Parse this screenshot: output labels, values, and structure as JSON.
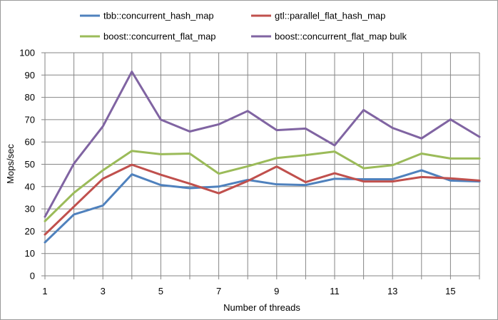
{
  "chart_data": {
    "type": "line",
    "xlabel": "Number of threads",
    "ylabel": "Mops/sec",
    "xlim": [
      1,
      16
    ],
    "ylim": [
      0,
      100
    ],
    "x": [
      1,
      2,
      3,
      4,
      5,
      6,
      7,
      8,
      9,
      10,
      11,
      12,
      13,
      14,
      15,
      16
    ],
    "x_tick_labels": [
      "1",
      "3",
      "5",
      "7",
      "9",
      "11",
      "13",
      "15"
    ],
    "y_tick_labels": [
      "0",
      "10",
      "20",
      "30",
      "40",
      "50",
      "60",
      "70",
      "80",
      "90",
      "100"
    ],
    "grid": "vertical and horizontal major gridlines",
    "legend_position": "top",
    "series": [
      {
        "name": "tbb::concurrent_hash_map",
        "color": "#4f81bd",
        "values": [
          15.0,
          27.5,
          31.5,
          45.5,
          40.7,
          39.3,
          40.0,
          43.0,
          41.0,
          40.7,
          43.5,
          43.3,
          43.3,
          47.3,
          42.7,
          42.3
        ]
      },
      {
        "name": "gtl::parallel_flat_hash_map",
        "color": "#c0504d",
        "values": [
          18.5,
          31.0,
          43.5,
          49.8,
          45.3,
          41.3,
          37.0,
          42.5,
          49.0,
          42.0,
          46.0,
          42.3,
          42.3,
          44.3,
          43.7,
          42.7
        ]
      },
      {
        "name": "boost::concurrent_flat_map",
        "color": "#9bbb59",
        "values": [
          24.5,
          37.2,
          47.3,
          56.0,
          54.5,
          54.8,
          45.8,
          49.1,
          52.8,
          54.1,
          55.7,
          48.2,
          49.6,
          54.8,
          52.6,
          52.6
        ]
      },
      {
        "name": "boost::concurrent_flat_map bulk",
        "color": "#8064a2",
        "values": [
          26.5,
          50.3,
          67.0,
          91.5,
          70.0,
          64.7,
          67.9,
          73.9,
          65.3,
          66.0,
          58.5,
          74.3,
          66.3,
          61.6,
          70.1,
          62.3
        ]
      }
    ]
  }
}
